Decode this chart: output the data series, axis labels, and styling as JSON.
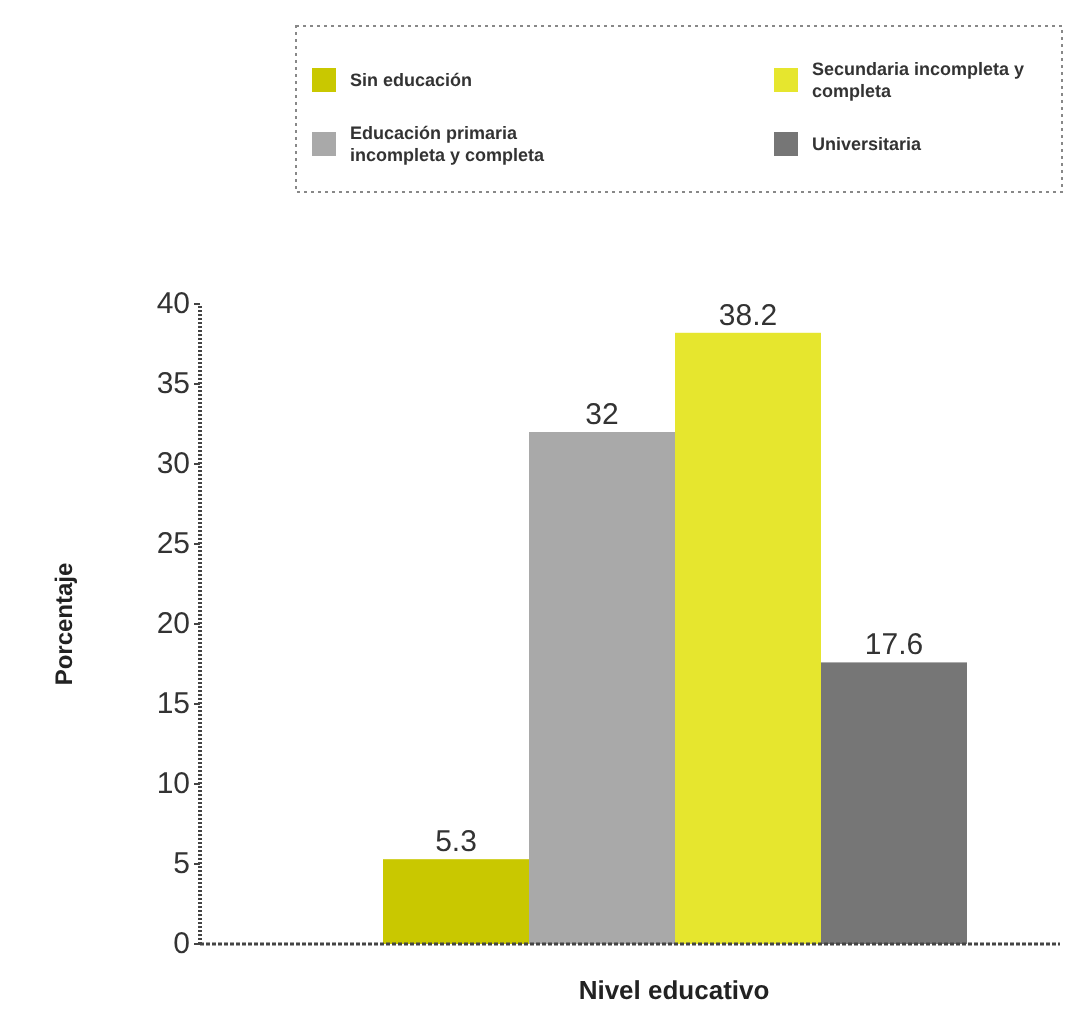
{
  "chart_data": {
    "type": "bar",
    "xlabel": "Nivel educativo",
    "ylabel": "Porcentaje",
    "categories": [
      null
    ],
    "series": [
      {
        "name": "Sin educación",
        "color": "#c9c800",
        "values": [
          5.3
        ]
      },
      {
        "name": "Educación primaria incompleta y completa",
        "color": "#a9a9a9",
        "values": [
          32
        ]
      },
      {
        "name": "Secundaria incompleta y completa",
        "color": "#e6e62e",
        "values": [
          38.2
        ]
      },
      {
        "name": "Universitaria",
        "color": "#767676",
        "values": [
          17.6
        ]
      }
    ],
    "ylim": [
      0,
      40
    ],
    "yticks": [
      0,
      5,
      10,
      15,
      20,
      25,
      30,
      35,
      40
    ],
    "data_labels": true,
    "legend": "top right",
    "grid": false
  }
}
